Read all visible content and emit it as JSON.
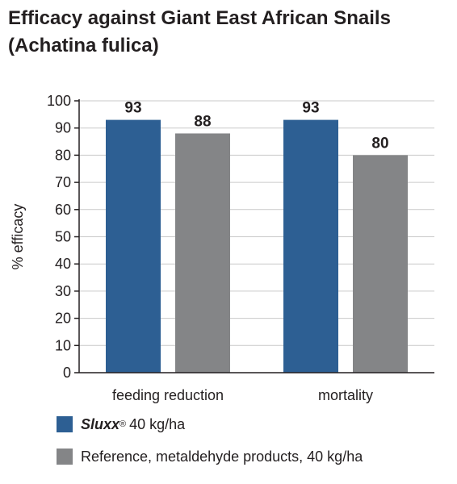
{
  "title_line1": "Efficacy against Giant East African Snails",
  "title_line2": "(Achatina fulica)",
  "chart_data": {
    "type": "bar",
    "title": "Efficacy against Giant East African Snails (Achatina fulica)",
    "ylabel": "% efficacy",
    "xlabel": "",
    "ylim": [
      0,
      100
    ],
    "yticks": [
      0,
      10,
      20,
      30,
      40,
      50,
      60,
      70,
      80,
      90,
      100
    ],
    "grid": true,
    "legend_position": "bottom-left",
    "categories": [
      "feeding reduction",
      "mortality"
    ],
    "series": [
      {
        "name": "Sluxx® 40 kg/ha",
        "color": "#2d5f93",
        "values": [
          93,
          93
        ]
      },
      {
        "name": "Reference, metaldehyde products, 40 kg/ha",
        "color": "#848587",
        "values": [
          88,
          80
        ]
      }
    ]
  },
  "legend": {
    "series1_brand": "Sluxx",
    "series1_mark": "®",
    "series1_rest": "40 kg/ha",
    "series2_label": "Reference, metaldehyde products, 40 kg/ha"
  }
}
